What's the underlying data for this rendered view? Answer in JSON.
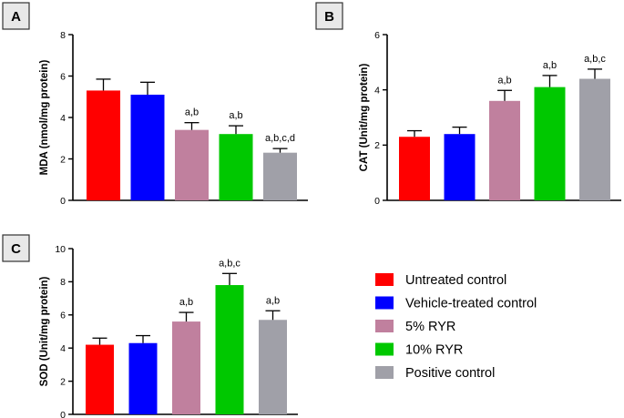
{
  "legend": [
    {
      "label": "Untreated control",
      "color": "#ff0000"
    },
    {
      "label": "Vehicle-treated control",
      "color": "#0000ff"
    },
    {
      "label": "5% RYR",
      "color": "#c0809e"
    },
    {
      "label": "10% RYR",
      "color": "#00c800"
    },
    {
      "label": "Positive control",
      "color": "#a0a0a8"
    }
  ],
  "chart_data": [
    {
      "type": "bar",
      "panel": "A",
      "ylabel": "MDA (nmol/mg protein)",
      "ylim": [
        0,
        8
      ],
      "yticks": [
        "0",
        "2",
        "4",
        "6",
        "8"
      ],
      "categories": [
        "Untreated control",
        "Vehicle-treated control",
        "5% RYR",
        "10% RYR",
        "Positive control"
      ],
      "values": [
        5.3,
        5.1,
        3.4,
        3.2,
        2.3
      ],
      "errors": [
        0.55,
        0.6,
        0.35,
        0.4,
        0.2
      ],
      "annotations": [
        "",
        "",
        "a,b",
        "a,b",
        "a,b,c,d"
      ]
    },
    {
      "type": "bar",
      "panel": "B",
      "ylabel": "CAT (Unit/mg protein)",
      "ylim": [
        0,
        6
      ],
      "yticks": [
        "0",
        "2",
        "4",
        "6"
      ],
      "categories": [
        "Untreated control",
        "Vehicle-treated control",
        "5% RYR",
        "10% RYR",
        "Positive control"
      ],
      "values": [
        2.3,
        2.4,
        3.6,
        4.1,
        4.4
      ],
      "errors": [
        0.22,
        0.25,
        0.38,
        0.42,
        0.35
      ],
      "annotations": [
        "",
        "",
        "a,b",
        "a,b",
        "a,b,c"
      ]
    },
    {
      "type": "bar",
      "panel": "C",
      "ylabel": "SOD (Unit/mg protein)",
      "ylim": [
        0,
        10
      ],
      "yticks": [
        "0",
        "2",
        "4",
        "6",
        "8",
        "10"
      ],
      "categories": [
        "Untreated control",
        "Vehicle-treated control",
        "5% RYR",
        "10% RYR",
        "Positive control"
      ],
      "values": [
        4.2,
        4.3,
        5.6,
        7.8,
        5.7
      ],
      "errors": [
        0.4,
        0.45,
        0.55,
        0.7,
        0.55
      ],
      "annotations": [
        "",
        "",
        "a,b",
        "a,b,c",
        "a,b"
      ]
    }
  ]
}
